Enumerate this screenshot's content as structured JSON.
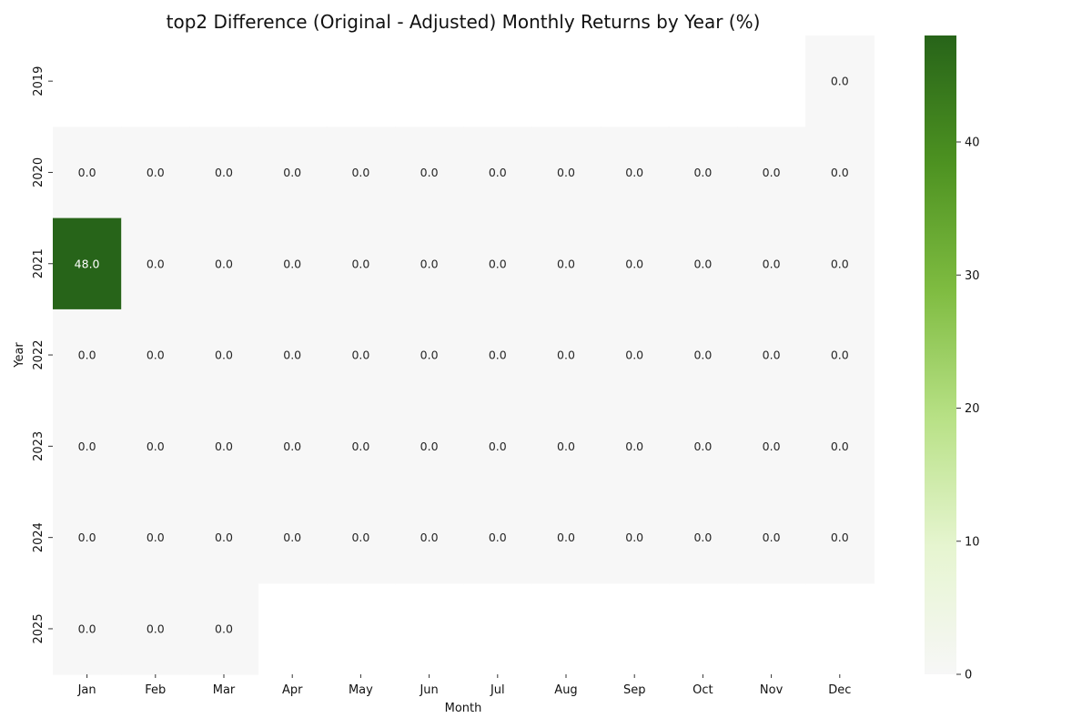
{
  "chart_data": {
    "type": "heatmap",
    "title": "top2 Difference (Original - Adjusted) Monthly Returns by Year (%)",
    "xlabel": "Month",
    "ylabel": "Year",
    "x_categories": [
      "Jan",
      "Feb",
      "Mar",
      "Apr",
      "May",
      "Jun",
      "Jul",
      "Aug",
      "Sep",
      "Oct",
      "Nov",
      "Dec"
    ],
    "y_categories": [
      "2019",
      "2020",
      "2021",
      "2022",
      "2023",
      "2024",
      "2025"
    ],
    "values": [
      [
        null,
        null,
        null,
        null,
        null,
        null,
        null,
        null,
        null,
        null,
        null,
        0.0
      ],
      [
        0.0,
        0.0,
        0.0,
        0.0,
        0.0,
        0.0,
        0.0,
        0.0,
        0.0,
        0.0,
        0.0,
        0.0
      ],
      [
        48.0,
        0.0,
        0.0,
        0.0,
        0.0,
        0.0,
        0.0,
        0.0,
        0.0,
        0.0,
        0.0,
        0.0
      ],
      [
        0.0,
        0.0,
        0.0,
        0.0,
        0.0,
        0.0,
        0.0,
        0.0,
        0.0,
        0.0,
        0.0,
        0.0
      ],
      [
        0.0,
        0.0,
        0.0,
        0.0,
        0.0,
        0.0,
        0.0,
        0.0,
        0.0,
        0.0,
        0.0,
        0.0
      ],
      [
        0.0,
        0.0,
        0.0,
        0.0,
        0.0,
        0.0,
        0.0,
        0.0,
        0.0,
        0.0,
        0.0,
        0.0
      ],
      [
        0.0,
        0.0,
        0.0,
        null,
        null,
        null,
        null,
        null,
        null,
        null,
        null,
        null
      ]
    ],
    "colorbar": {
      "range": [
        0,
        48
      ],
      "ticks": [
        0,
        10,
        20,
        30,
        40
      ],
      "colors": [
        "#f7f7f7",
        "#e6f5d0",
        "#b8e186",
        "#7fbc41",
        "#4d9221",
        "#276419"
      ]
    }
  }
}
